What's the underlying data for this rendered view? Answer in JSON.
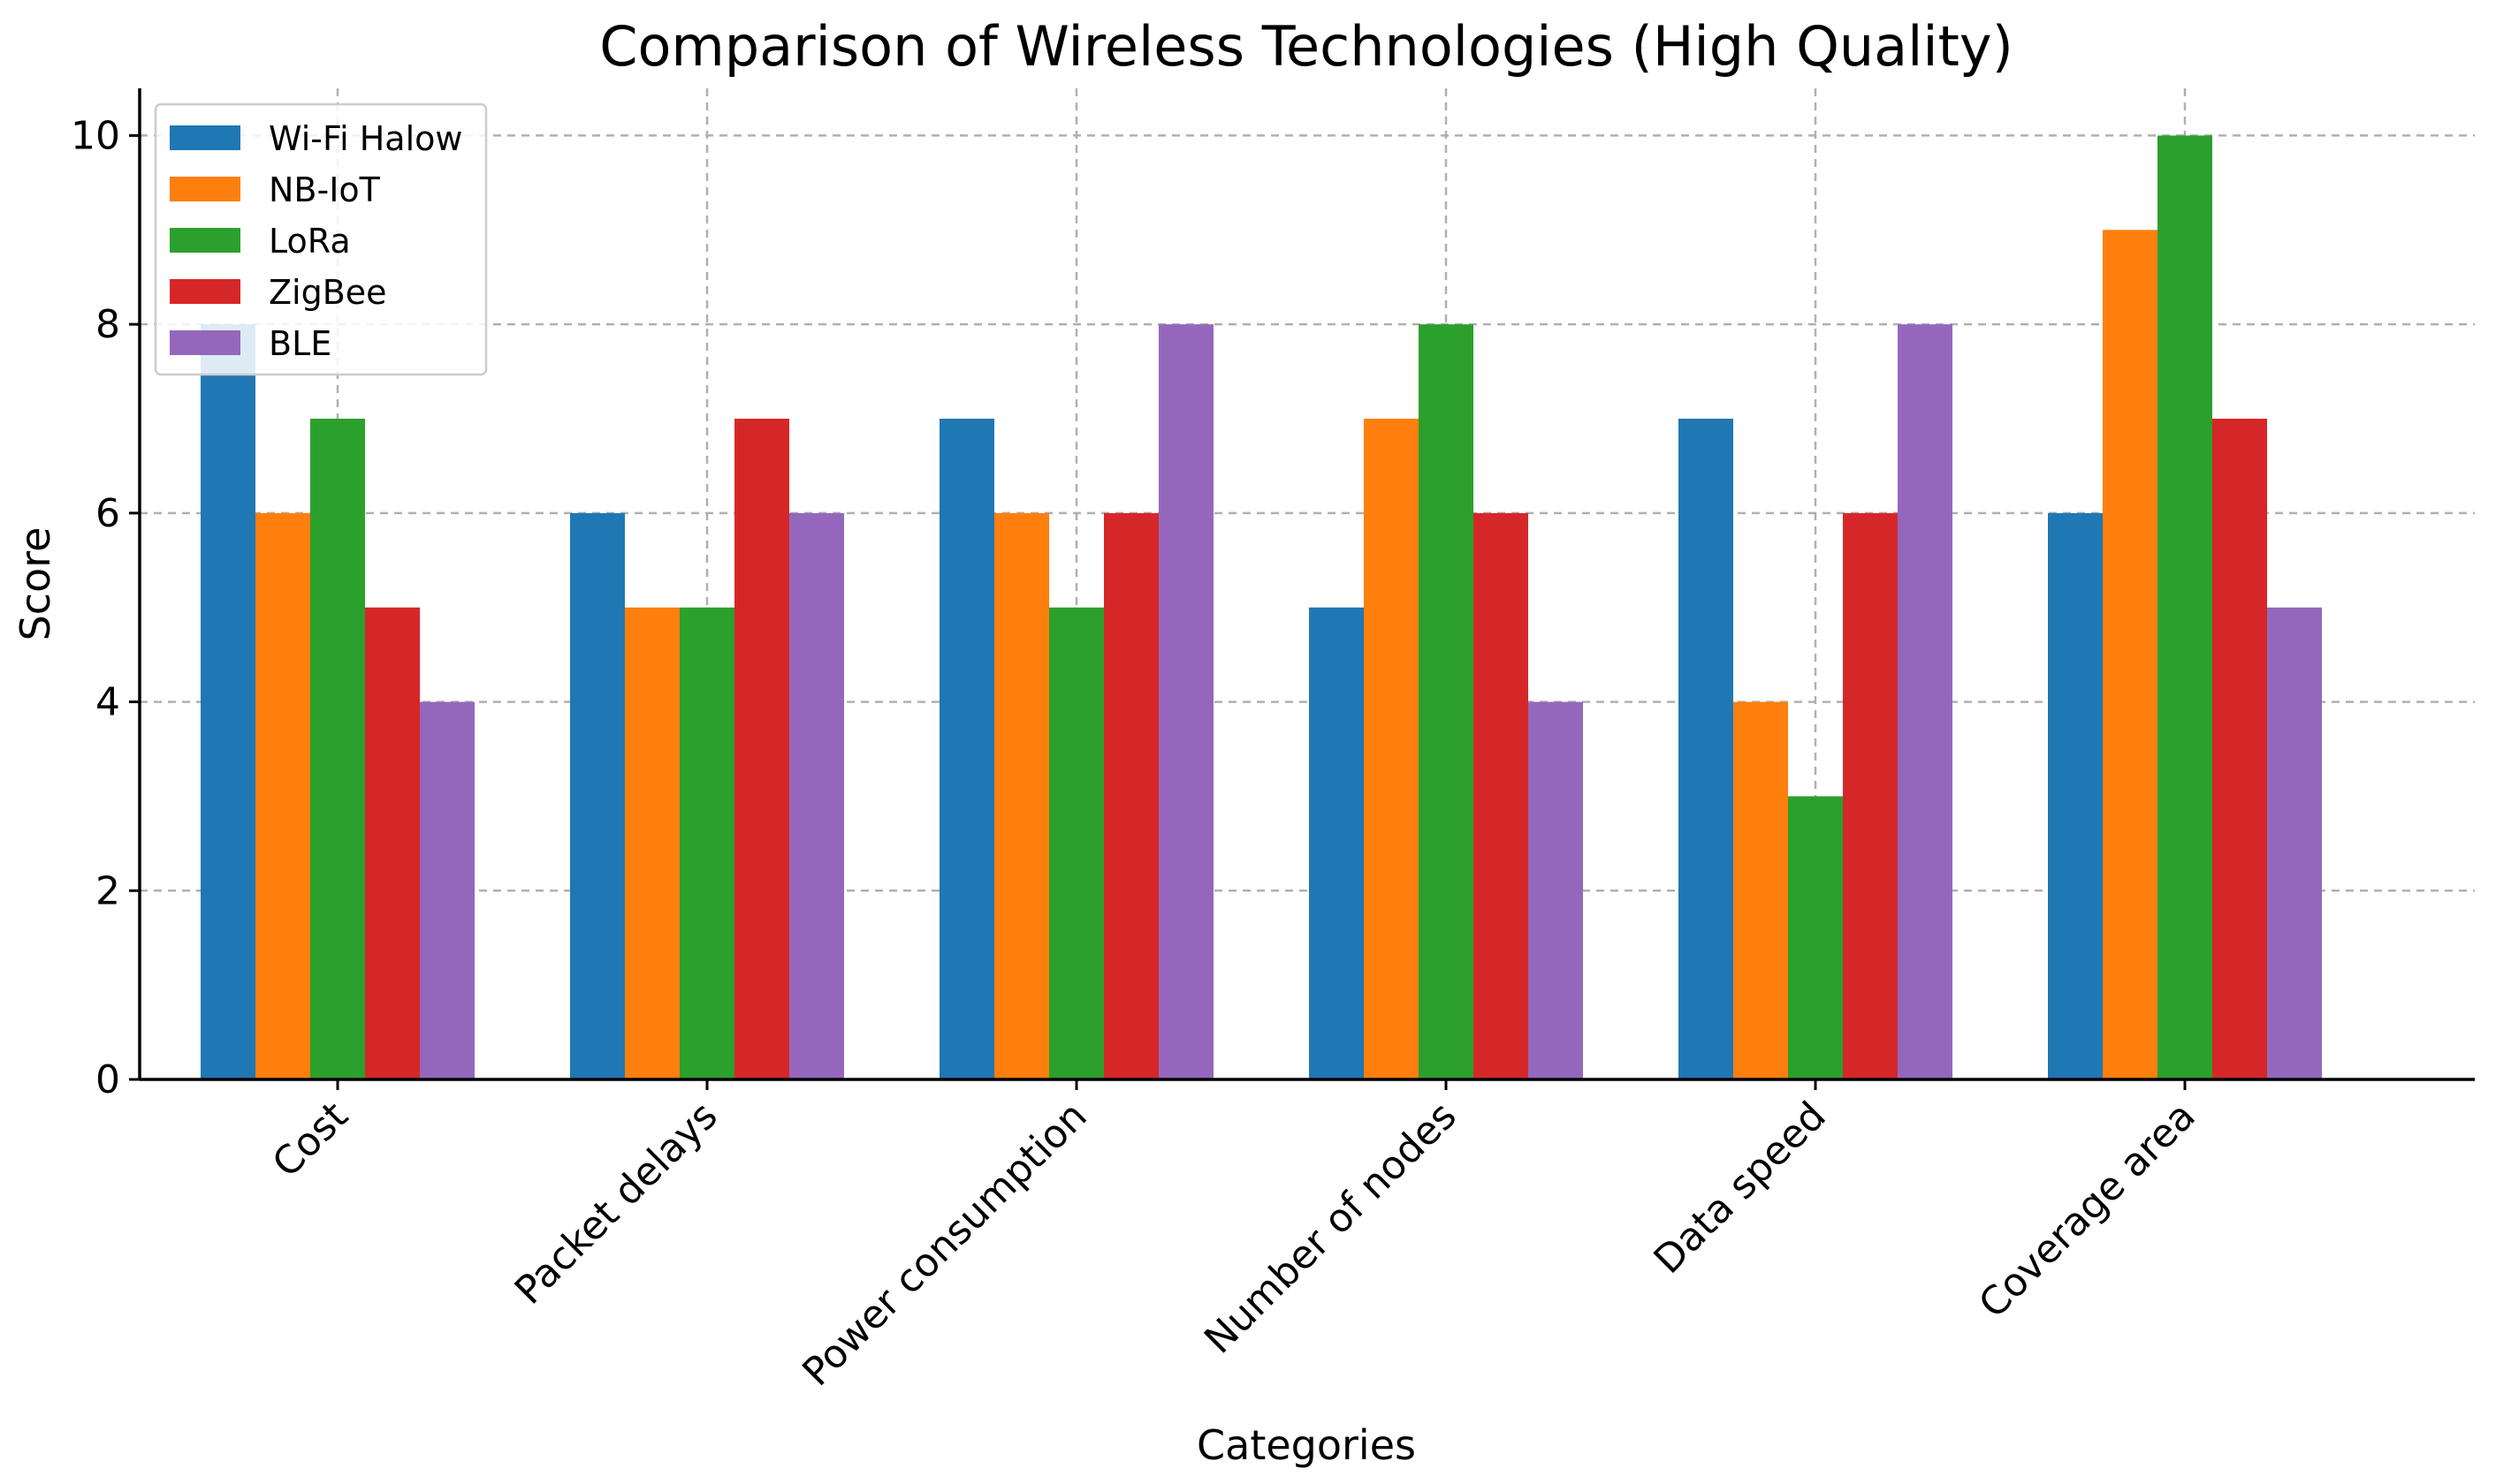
{
  "chart_data": {
    "type": "bar",
    "title": "Comparison of Wireless Technologies (High Quality)",
    "xlabel": "Categories",
    "ylabel": "Score",
    "categories": [
      "Cost",
      "Packet delays",
      "Power consumption",
      "Number of nodes",
      "Data speed",
      "Coverage area"
    ],
    "series": [
      {
        "name": "Wi-Fi Halow",
        "color": "#1f77b4",
        "values": [
          8,
          6,
          7,
          5,
          7,
          6
        ]
      },
      {
        "name": "NB-IoT",
        "color": "#ff7f0e",
        "values": [
          6,
          5,
          6,
          7,
          4,
          9
        ]
      },
      {
        "name": "LoRa",
        "color": "#2ca02c",
        "values": [
          7,
          5,
          5,
          8,
          3,
          10
        ]
      },
      {
        "name": "ZigBee",
        "color": "#d62728",
        "values": [
          5,
          7,
          6,
          6,
          6,
          7
        ]
      },
      {
        "name": "BLE",
        "color": "#9467bd",
        "values": [
          4,
          6,
          8,
          4,
          8,
          5
        ]
      }
    ],
    "ylim": [
      0,
      10.5
    ],
    "yticks": [
      0,
      2,
      4,
      6,
      8,
      10
    ],
    "grid": true,
    "legend_position": "top-left",
    "x_tick_rotation": 45
  }
}
